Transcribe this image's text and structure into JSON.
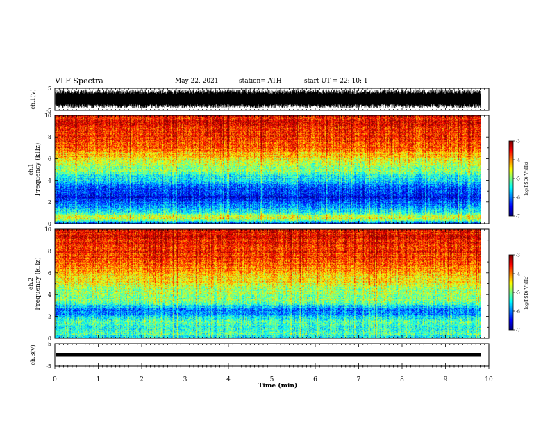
{
  "header": {
    "title": "VLF Spectra",
    "date": "May 22, 2021",
    "station": "station= ATH",
    "start_time": "start UT =  22: 10: 1"
  },
  "chart_data": [
    {
      "type": "line",
      "name": "ch1-waveform",
      "ylabel": "ch.1(V)",
      "xlim": [
        0,
        10
      ],
      "ylim": [
        -5,
        5
      ],
      "y_ticks": [
        "5",
        "-5"
      ],
      "description_values": {
        "x_end": 9.82,
        "typical_min": -4.0,
        "typical_max": 4.5
      }
    },
    {
      "type": "heatmap",
      "name": "ch1-spectrogram",
      "ylabel": "ch.1 Frequency (kHz)",
      "xlim": [
        0,
        10
      ],
      "ylim": [
        0,
        10
      ],
      "y_ticks": [
        "0",
        "2",
        "4",
        "6",
        "8",
        "10"
      ],
      "x_end": 9.82,
      "colorbar": {
        "label": "log(PSD)(V²/Hz)",
        "range": [
          -7,
          -3
        ],
        "ticks": [
          "-3",
          "-4",
          "-5",
          "-6",
          "-7"
        ]
      },
      "profile_log_psd": [
        {
          "f": 0.0,
          "v": -6.2
        },
        {
          "f": 0.3,
          "v": -5.0
        },
        {
          "f": 0.6,
          "v": -4.6
        },
        {
          "f": 1.0,
          "v": -5.5
        },
        {
          "f": 1.5,
          "v": -5.8
        },
        {
          "f": 2.0,
          "v": -6.2
        },
        {
          "f": 2.5,
          "v": -6.6
        },
        {
          "f": 3.0,
          "v": -6.3
        },
        {
          "f": 3.5,
          "v": -6.1
        },
        {
          "f": 4.0,
          "v": -5.6
        },
        {
          "f": 4.5,
          "v": -5.3
        },
        {
          "f": 5.0,
          "v": -5.0
        },
        {
          "f": 5.5,
          "v": -4.8
        },
        {
          "f": 6.0,
          "v": -4.5
        },
        {
          "f": 6.5,
          "v": -4.2
        },
        {
          "f": 7.0,
          "v": -3.9
        },
        {
          "f": 8.0,
          "v": -3.7
        },
        {
          "f": 9.0,
          "v": -3.6
        },
        {
          "f": 10.0,
          "v": -3.5
        }
      ]
    },
    {
      "type": "heatmap",
      "name": "ch2-spectrogram",
      "ylabel": "ch.2 Frequency (kHz)",
      "xlim": [
        0,
        10
      ],
      "ylim": [
        0,
        10
      ],
      "y_ticks": [
        "0",
        "2",
        "4",
        "6",
        "8",
        "10"
      ],
      "x_end": 9.82,
      "colorbar": {
        "label": "log(PSD)(V²/Hz)",
        "range": [
          -7,
          -3
        ],
        "ticks": [
          "-3",
          "-4",
          "-5",
          "-6",
          "-7"
        ]
      },
      "profile_log_psd": [
        {
          "f": 0.0,
          "v": -5.5
        },
        {
          "f": 0.5,
          "v": -5.2
        },
        {
          "f": 1.0,
          "v": -5.4
        },
        {
          "f": 1.5,
          "v": -5.3
        },
        {
          "f": 2.0,
          "v": -5.6
        },
        {
          "f": 2.5,
          "v": -6.1
        },
        {
          "f": 3.0,
          "v": -5.5
        },
        {
          "f": 3.5,
          "v": -5.0
        },
        {
          "f": 4.0,
          "v": -4.9
        },
        {
          "f": 4.5,
          "v": -4.8
        },
        {
          "f": 5.0,
          "v": -4.6
        },
        {
          "f": 5.5,
          "v": -4.4
        },
        {
          "f": 6.0,
          "v": -4.2
        },
        {
          "f": 6.5,
          "v": -4.0
        },
        {
          "f": 7.0,
          "v": -3.8
        },
        {
          "f": 8.0,
          "v": -3.6
        },
        {
          "f": 9.0,
          "v": -3.5
        },
        {
          "f": 10.0,
          "v": -3.5
        }
      ]
    },
    {
      "type": "line",
      "name": "ch3-waveform",
      "ylabel": "ch.3(V)",
      "xlim": [
        0,
        10
      ],
      "ylim": [
        -5,
        5
      ],
      "y_ticks": [
        "5",
        "-5"
      ],
      "description_values": {
        "x_end": 9.82,
        "level": 0.0
      }
    }
  ],
  "x_axis": {
    "label": "Time (min)",
    "ticks": [
      "0",
      "1",
      "2",
      "3",
      "4",
      "5",
      "6",
      "7",
      "8",
      "9",
      "10"
    ]
  },
  "colors": {
    "frame": "#000000",
    "background": "#ffffff"
  }
}
